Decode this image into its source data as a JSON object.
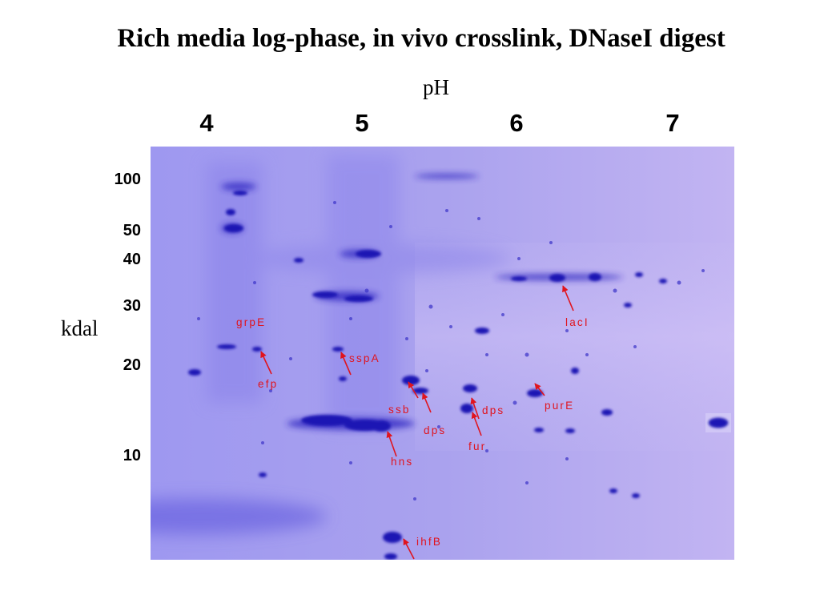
{
  "title": "Rich media log-phase, in vivo crosslink, DNaseI digest",
  "ph_axis": {
    "label": "pH",
    "ticks": [
      "4",
      "5",
      "6",
      "7"
    ]
  },
  "mass_axis": {
    "label": "kdal",
    "ticks": [
      "100",
      "50",
      "40",
      "30",
      "20",
      "10"
    ]
  },
  "protein_labels": [
    "grpE",
    "efp",
    "sspA",
    "ssb",
    "dps",
    "dps",
    "fur",
    "hns",
    "purE",
    "lacI",
    "ihfB"
  ],
  "colors": {
    "gel_background": "#a9a0ee",
    "spot": "#1c14b4",
    "arrow": "#e0141e"
  }
}
